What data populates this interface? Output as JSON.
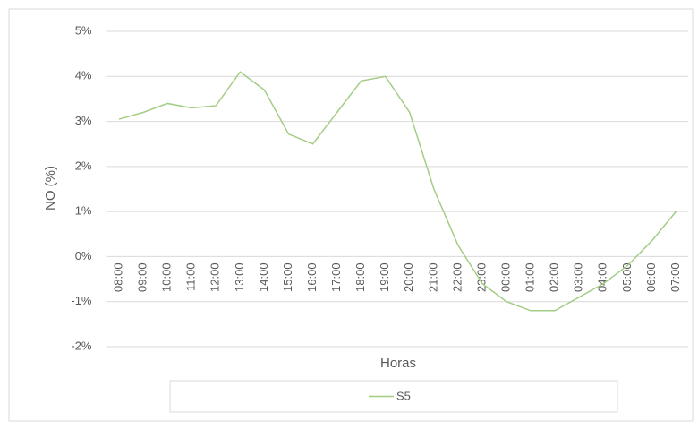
{
  "chart_data": {
    "type": "line",
    "x_label": "Horas",
    "y_label": "NO (%)",
    "categories": [
      "08:00",
      "09:00",
      "10:00",
      "11:00",
      "12:00",
      "13:00",
      "14:00",
      "15:00",
      "16:00",
      "17:00",
      "18:00",
      "19:00",
      "20:00",
      "21:00",
      "22:00",
      "23:00",
      "00:00",
      "01:00",
      "02:00",
      "03:00",
      "04:00",
      "05:00",
      "06:00",
      "07:00"
    ],
    "series": [
      {
        "name": "S5",
        "color": "#a3cd85",
        "values": [
          3.05,
          3.2,
          3.4,
          3.3,
          3.35,
          4.1,
          3.7,
          2.72,
          2.5,
          3.2,
          3.9,
          4.0,
          3.2,
          1.5,
          0.25,
          -0.6,
          -1.0,
          -1.2,
          -1.2,
          -0.9,
          -0.6,
          -0.2,
          0.35,
          1.0
        ]
      }
    ],
    "ylim": [
      -2,
      5
    ],
    "yticks": [
      {
        "value": -2,
        "label": "-2%"
      },
      {
        "value": -1,
        "label": "-1%"
      },
      {
        "value": 0,
        "label": "0%"
      },
      {
        "value": 1,
        "label": "1%"
      },
      {
        "value": 2,
        "label": "2%"
      },
      {
        "value": 3,
        "label": "3%"
      },
      {
        "value": 4,
        "label": "4%"
      },
      {
        "value": 5,
        "label": "5%"
      }
    ],
    "grid": true,
    "legend": "bottom"
  }
}
